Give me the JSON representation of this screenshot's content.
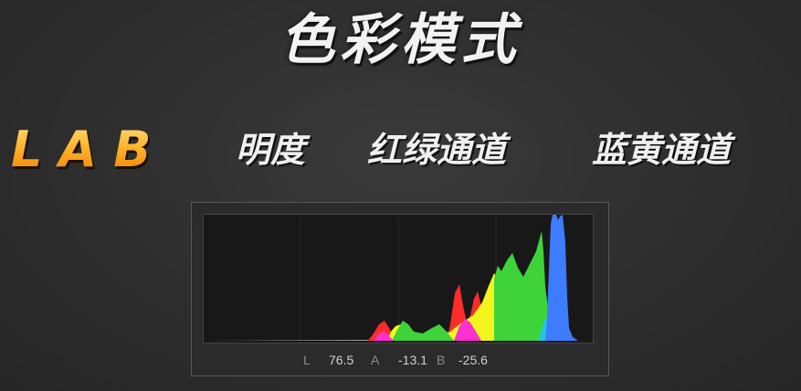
{
  "title": "色彩模式",
  "mode_label": "LAB",
  "terms": [
    "明度",
    "红绿通道",
    "蓝黄通道"
  ],
  "histogram": {
    "readout": {
      "l_label": "L",
      "l_value": "76.5",
      "a_label": "A",
      "a_value": "-13.1",
      "b_label": "B",
      "b_value": "-25.6"
    },
    "channel_colors": {
      "red": "#ff2a2a",
      "magenta": "#ff2fd0",
      "yellow": "#f5f51e",
      "green": "#3fd33a",
      "cyan": "#20c8e0",
      "blue": "#3d7bff",
      "gray": "#b8b8b8"
    }
  }
}
